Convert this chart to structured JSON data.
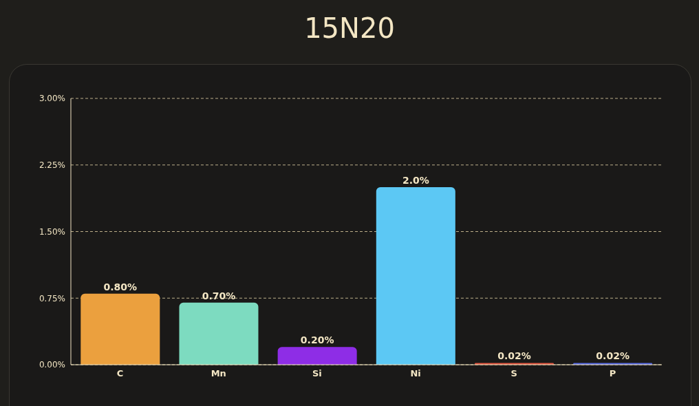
{
  "chart_data": {
    "type": "bar",
    "title": "15N20",
    "categories": [
      "C",
      "Mn",
      "Si",
      "Ni",
      "S",
      "P"
    ],
    "values": [
      0.8,
      0.7,
      0.2,
      2.0,
      0.02,
      0.02
    ],
    "value_labels": [
      "0.80%",
      "0.70%",
      "0.20%",
      "2.0%",
      "0.02%",
      "0.02%"
    ],
    "colors": [
      "#eba03e",
      "#7ddbc0",
      "#8e2de6",
      "#5cc8f4",
      "#e2553f",
      "#5468e4"
    ],
    "ylim": [
      0,
      3
    ],
    "yticks": [
      {
        "value": 0,
        "label": "0.00%"
      },
      {
        "value": 0.75,
        "label": "0.75%"
      },
      {
        "value": 1.5,
        "label": "1.50%"
      },
      {
        "value": 2.25,
        "label": "2.25%"
      },
      {
        "value": 3,
        "label": "3.00%"
      }
    ],
    "grid": "y"
  }
}
